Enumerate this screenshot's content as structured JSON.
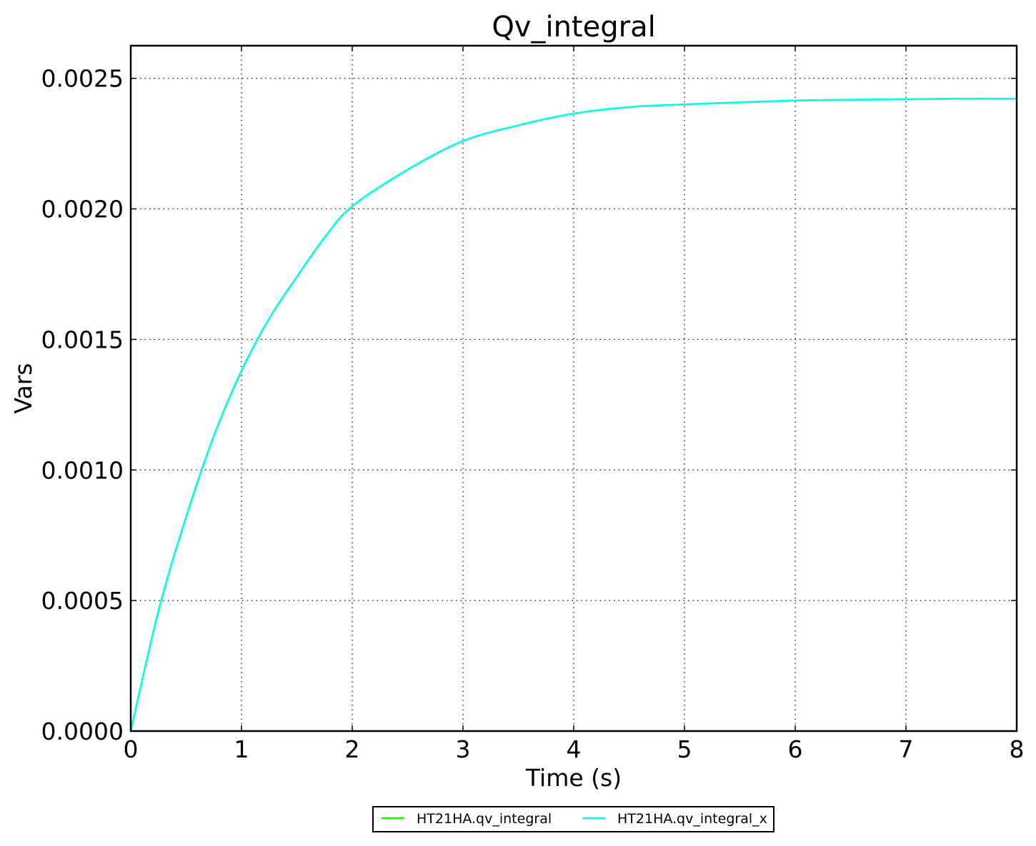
{
  "chart_data": {
    "type": "line",
    "title": "Qv_integral",
    "xlabel": "Time (s)",
    "ylabel": "Vars",
    "xlim": [
      0,
      8
    ],
    "ylim": [
      0,
      0.002625
    ],
    "xticks": [
      0,
      1,
      2,
      3,
      4,
      5,
      6,
      7,
      8
    ],
    "xtick_labels": [
      "0",
      "1",
      "2",
      "3",
      "4",
      "5",
      "6",
      "7",
      "8"
    ],
    "yticks": [
      0,
      0.0005,
      0.001,
      0.0015,
      0.002,
      0.0025
    ],
    "ytick_labels": [
      "0.0000",
      "0.0005",
      "0.0010",
      "0.0015",
      "0.0020",
      "0.0025"
    ],
    "grid": true,
    "legend_position": "below plot, centered",
    "series": [
      {
        "name": "HT21HA.qv_integral",
        "color": "#22ee00",
        "x": [
          0,
          0.25,
          0.5,
          0.75,
          1,
          1.25,
          1.5,
          1.75,
          2,
          2.5,
          3,
          3.5,
          4,
          4.5,
          5,
          5.5,
          6,
          6.5,
          7,
          7.5,
          8
        ],
        "y": [
          0,
          0.00046,
          0.00082,
          0.00113,
          0.00138,
          0.00158,
          0.00174,
          0.00189,
          0.00201,
          0.00215,
          0.00226,
          0.00232,
          0.002365,
          0.00239,
          0.0024,
          0.002408,
          0.002415,
          0.002418,
          0.00242,
          0.002422,
          0.002422
        ]
      },
      {
        "name": "HT21HA.qv_integral_x",
        "color": "#00ffee",
        "x": [
          0,
          0.25,
          0.5,
          0.75,
          1,
          1.25,
          1.5,
          1.75,
          2,
          2.5,
          3,
          3.5,
          4,
          4.5,
          5,
          5.5,
          6,
          6.5,
          7,
          7.5,
          8
        ],
        "y": [
          0,
          0.00046,
          0.00082,
          0.00113,
          0.00138,
          0.00158,
          0.00174,
          0.00189,
          0.00201,
          0.00215,
          0.00226,
          0.00232,
          0.002365,
          0.00239,
          0.0024,
          0.002408,
          0.002415,
          0.002418,
          0.00242,
          0.002422,
          0.002422
        ]
      }
    ]
  }
}
